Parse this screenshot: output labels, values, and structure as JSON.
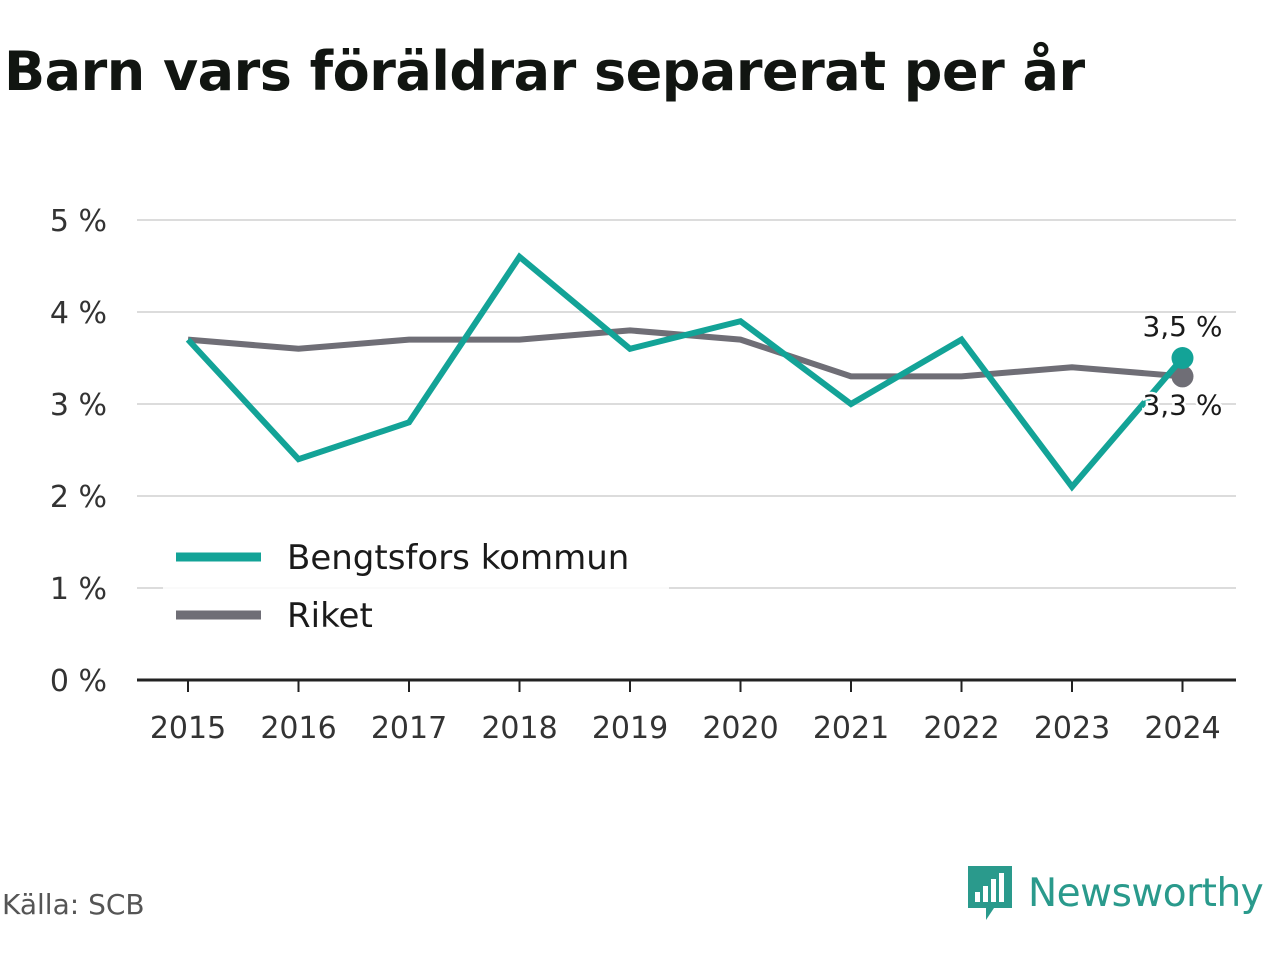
{
  "header": {
    "title": "Barn vars föräldrar separerat per år"
  },
  "footer": {
    "source": "Källa: SCB",
    "brand": "Newsworthy"
  },
  "colors": {
    "bengtsfors": "#13a397",
    "riket": "#6f6e76",
    "grid": "#dcdcdc",
    "axis": "#222222",
    "brand": "#2a9a8c"
  },
  "chart_data": {
    "type": "line",
    "categories": [
      "2015",
      "2016",
      "2017",
      "2018",
      "2019",
      "2020",
      "2021",
      "2022",
      "2023",
      "2024"
    ],
    "series": [
      {
        "name": "Bengtsfors kommun",
        "values": [
          3.7,
          2.4,
          2.8,
          4.6,
          3.6,
          3.9,
          3.0,
          3.7,
          2.1,
          3.5
        ],
        "end_label": "3,5 %"
      },
      {
        "name": "Riket",
        "values": [
          3.7,
          3.6,
          3.7,
          3.7,
          3.8,
          3.7,
          3.3,
          3.3,
          3.4,
          3.3
        ],
        "end_label": "3,3 %"
      }
    ],
    "y_ticks": [
      "0 %",
      "1 %",
      "2 %",
      "3 %",
      "4 %",
      "5 %"
    ],
    "ylim": [
      0,
      5
    ],
    "grid": true,
    "legend_position": "bottom-left"
  }
}
